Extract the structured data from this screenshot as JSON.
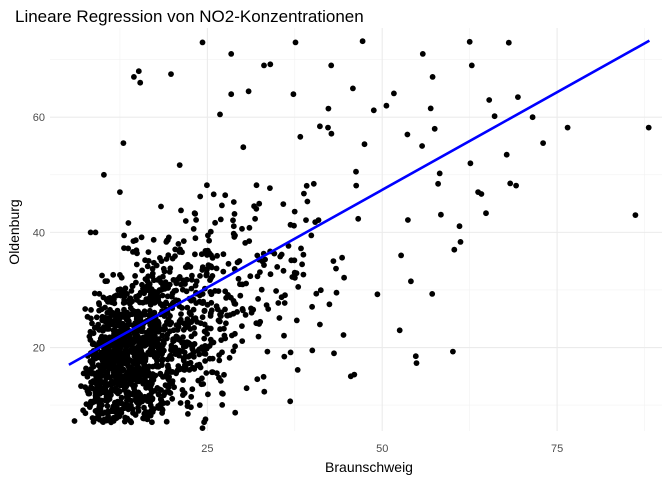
{
  "chart_data": {
    "type": "scatter",
    "title": "Lineare Regression von NO2-Konzentrationen",
    "xlabel": "Braunschweig",
    "ylabel": "Oldenburg",
    "xlim": [
      2.5,
      90
    ],
    "ylim": [
      5.5,
      75.5
    ],
    "x_ticks": [
      25,
      50,
      75
    ],
    "x_tick_labels": [
      "25",
      "50",
      "75"
    ],
    "y_ticks": [
      20,
      40,
      60
    ],
    "y_tick_labels": [
      "20",
      "40",
      "60"
    ],
    "grid": true,
    "legend": "none",
    "point_color": "#000000",
    "point_count": 1500,
    "regression_line": {
      "color": "#0000ff",
      "x": [
        5.2,
        88.2
      ],
      "y": [
        17.0,
        73.3
      ]
    },
    "points": [
      [
        24.3,
        73.0
      ],
      [
        37.6,
        73.0
      ],
      [
        47.2,
        73.2
      ],
      [
        62.5,
        73.1
      ],
      [
        28.4,
        71.0
      ],
      [
        55.8,
        71.0
      ],
      [
        15.2,
        68.0
      ],
      [
        14.5,
        67.0
      ],
      [
        15.4,
        66.0
      ],
      [
        19.8,
        67.5
      ],
      [
        33.1,
        69.0
      ],
      [
        34.0,
        69.2
      ],
      [
        42.7,
        69.0
      ],
      [
        57.2,
        67.0
      ],
      [
        62.8,
        69.0
      ],
      [
        65.3,
        63.0
      ],
      [
        69.4,
        63.5
      ],
      [
        71.5,
        60.0
      ],
      [
        76.5,
        58.2
      ],
      [
        73.0,
        55.5
      ],
      [
        67.8,
        53.5
      ],
      [
        88.1,
        58.2
      ],
      [
        57.5,
        58.0
      ],
      [
        55.7,
        55.0
      ],
      [
        53.6,
        57.0
      ],
      [
        62.6,
        52.0
      ],
      [
        68.3,
        48.5
      ],
      [
        63.7,
        47.0
      ],
      [
        60.3,
        37.0
      ],
      [
        52.7,
        36.0
      ],
      [
        54.1,
        31.5
      ],
      [
        52.5,
        23.0
      ],
      [
        54.8,
        18.5
      ],
      [
        54.9,
        17.3
      ],
      [
        60.1,
        19.3
      ],
      [
        86.2,
        43.0
      ],
      [
        46.0,
        15.3
      ],
      [
        45.5,
        15.0
      ],
      [
        43.1,
        19.0
      ],
      [
        40.0,
        19.5
      ],
      [
        24.3,
        6.0
      ],
      [
        13.0,
        55.5
      ],
      [
        10.2,
        50.0
      ],
      [
        12.5,
        47.0
      ],
      [
        8.3,
        40.0
      ],
      [
        9.0,
        40.0
      ],
      [
        30.9,
        64.5
      ],
      [
        28.4,
        64.0
      ],
      [
        45.8,
        65.0
      ],
      [
        37.3,
        64.0
      ],
      [
        42.3,
        61.5
      ],
      [
        48.8,
        61.2
      ],
      [
        50.6,
        62.0
      ],
      [
        26.8,
        60.5
      ]
    ]
  }
}
